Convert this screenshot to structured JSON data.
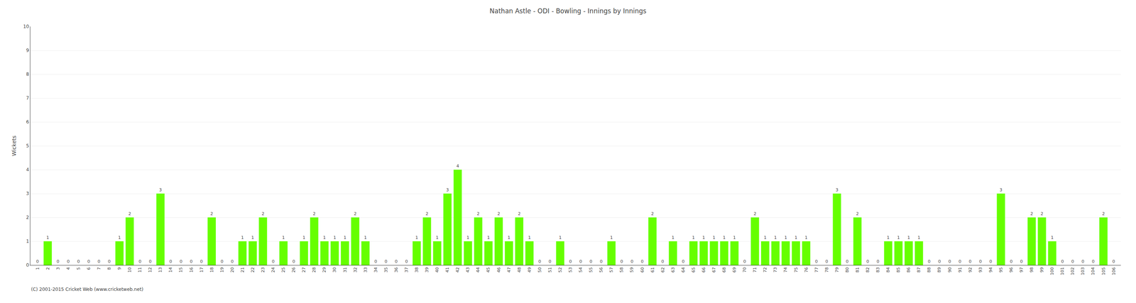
{
  "chart_data": {
    "type": "bar",
    "title": "Nathan Astle - ODI - Bowling - Innings by Innings",
    "ylabel": "Wickets",
    "annotations": [
      "(C) 2001-2015 Cricket Web (www.cricketweb.net)"
    ],
    "categories": [
      1,
      2,
      3,
      4,
      5,
      6,
      7,
      8,
      9,
      10,
      11,
      12,
      13,
      14,
      15,
      16,
      17,
      18,
      19,
      20,
      21,
      22,
      23,
      24,
      25,
      26,
      27,
      28,
      29,
      30,
      31,
      32,
      33,
      34,
      35,
      36,
      37,
      38,
      39,
      40,
      41,
      42,
      43,
      44,
      45,
      46,
      47,
      48,
      49,
      50,
      51,
      52,
      53,
      54,
      55,
      56,
      57,
      58,
      59,
      60,
      61,
      62,
      63,
      64,
      65,
      66,
      67,
      68,
      69,
      70,
      71,
      72,
      73,
      74,
      75,
      76,
      77,
      78,
      79,
      80,
      81,
      82,
      83,
      84,
      85,
      86,
      87,
      88,
      89,
      90,
      91,
      92,
      93,
      94,
      95,
      96,
      97,
      98,
      99,
      100,
      101,
      102,
      103,
      104,
      105,
      106
    ],
    "values": [
      0,
      1,
      0,
      0,
      0,
      0,
      0,
      0,
      1,
      2,
      0,
      0,
      3,
      0,
      0,
      0,
      0,
      2,
      0,
      0,
      1,
      1,
      2,
      0,
      1,
      0,
      1,
      2,
      1,
      1,
      1,
      2,
      1,
      0,
      0,
      0,
      0,
      1,
      2,
      1,
      3,
      4,
      1,
      2,
      1,
      2,
      1,
      2,
      1,
      0,
      0,
      1,
      0,
      0,
      0,
      0,
      1,
      0,
      0,
      0,
      2,
      0,
      1,
      0,
      1,
      1,
      1,
      1,
      1,
      0,
      2,
      1,
      1,
      1,
      1,
      1,
      0,
      0,
      3,
      0,
      2,
      0,
      0,
      1,
      1,
      1,
      1,
      0,
      0,
      0,
      0,
      0,
      0,
      0,
      3,
      0,
      0,
      2,
      2,
      1,
      0,
      0,
      0,
      0,
      2,
      0
    ],
    "color": "#66ff00",
    "ylim": [
      0,
      10
    ],
    "yticks": [
      0,
      1,
      2,
      3,
      4,
      5,
      6,
      7,
      8,
      9,
      10
    ],
    "grid": true,
    "data_labels": true
  }
}
